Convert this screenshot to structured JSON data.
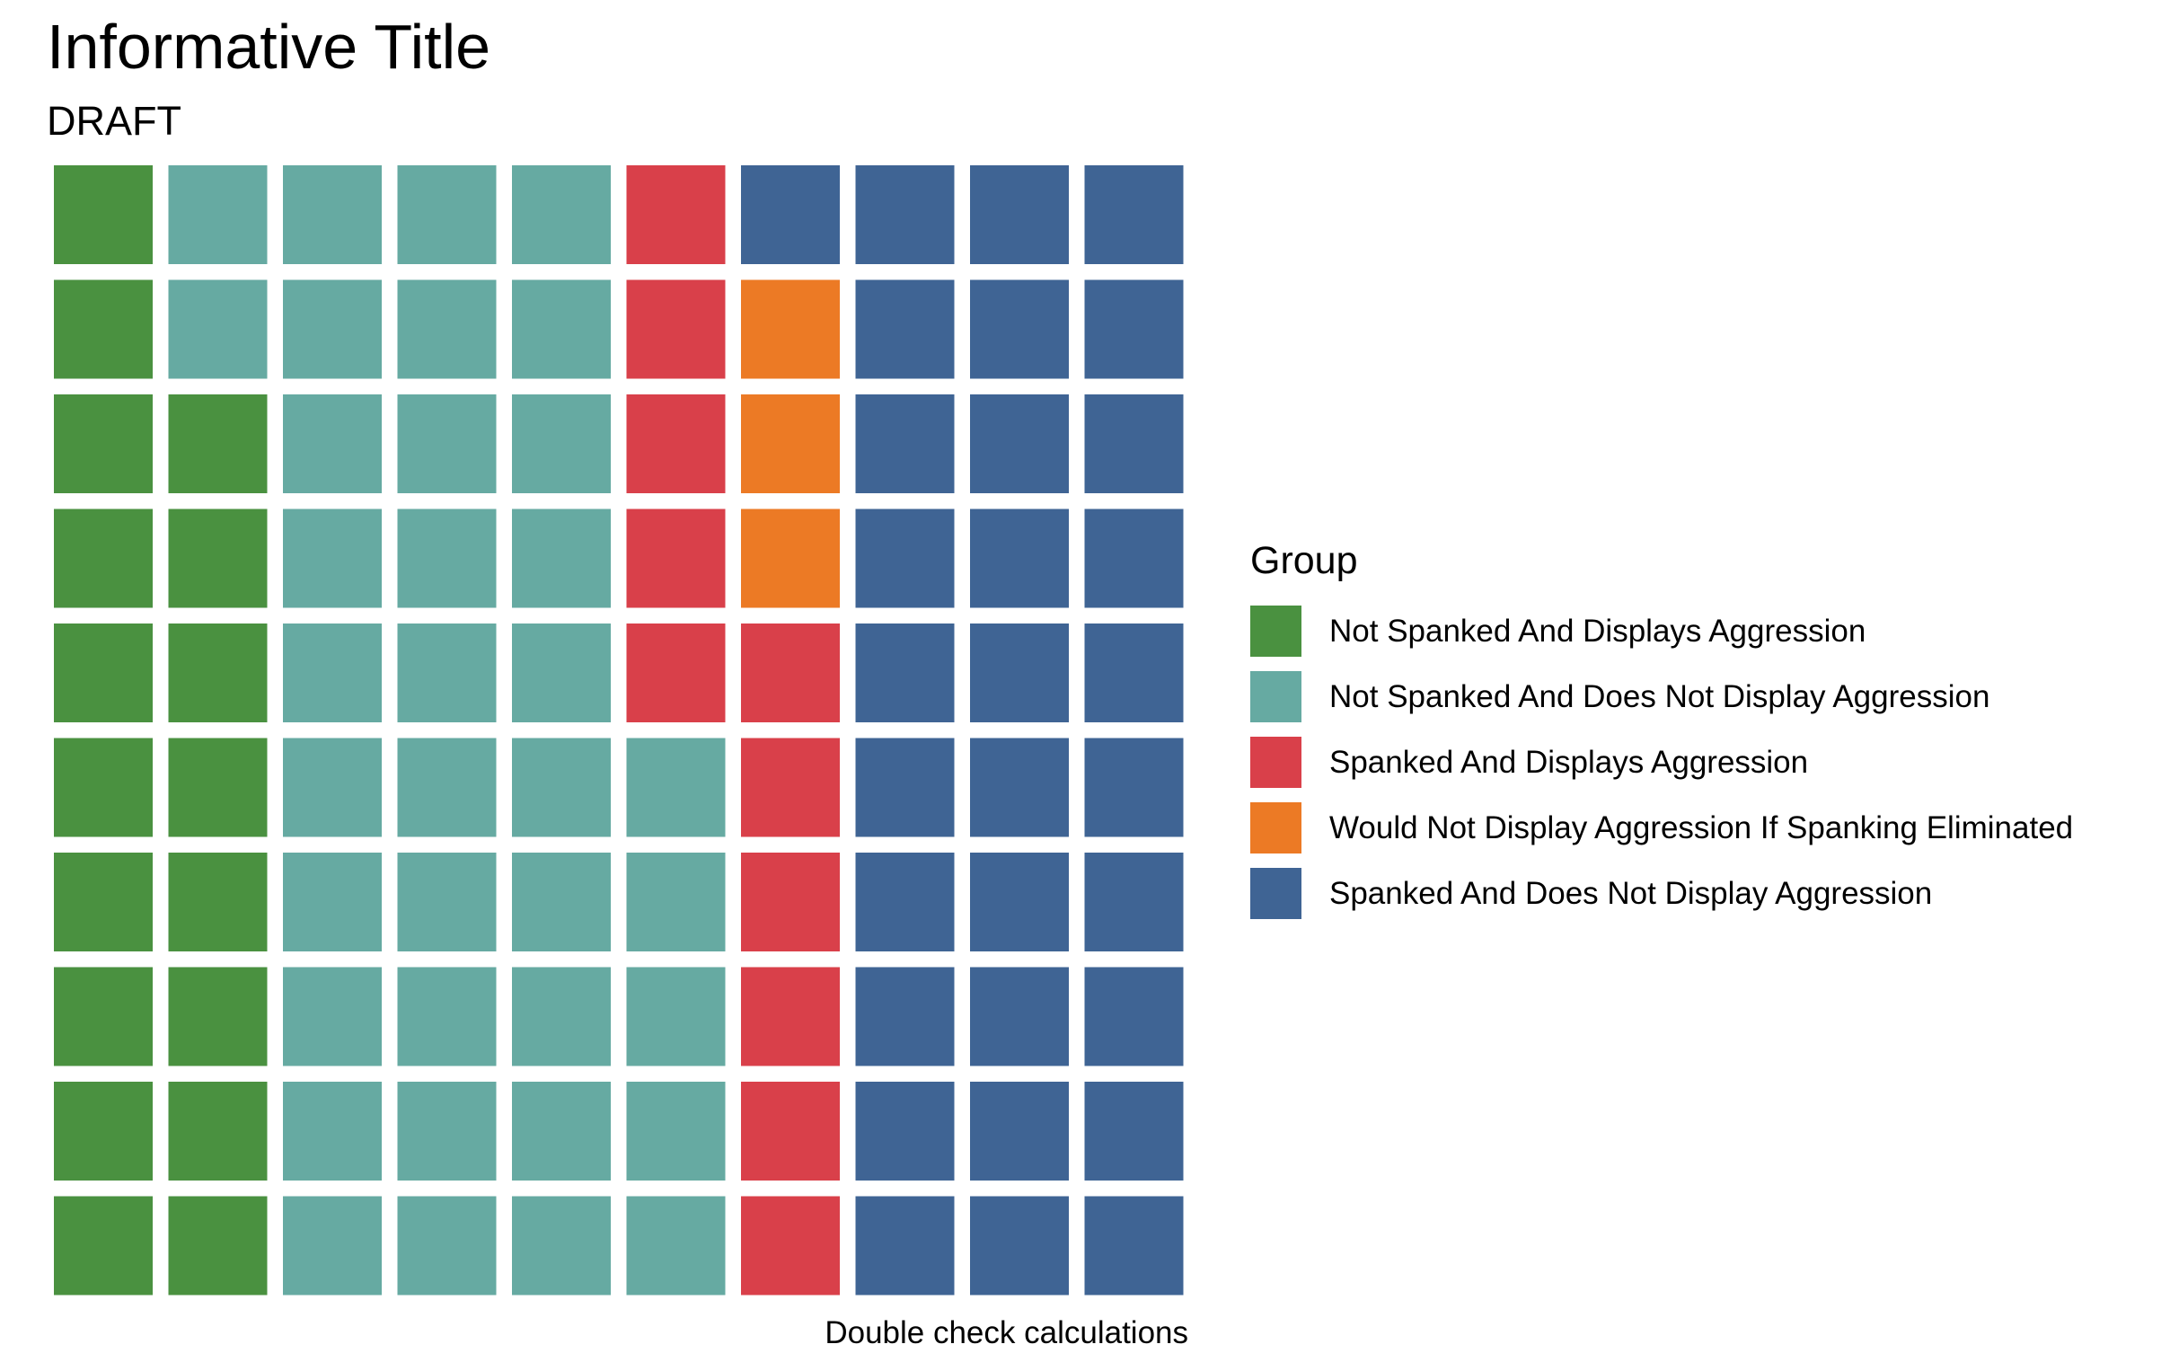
{
  "chart_data": {
    "type": "waffle",
    "title": "Informative Title",
    "subtitle": "DRAFT",
    "caption": "Double check calculations",
    "grid": {
      "rows": 10,
      "cols": 10,
      "fill_order": "column-major, bottom-to-top"
    },
    "legend": {
      "title": "Group",
      "position": "right"
    },
    "series": [
      {
        "name": "Not Spanked And Displays Aggression",
        "value": 18,
        "color": "#4A9140"
      },
      {
        "name": "Not Spanked And Does Not Display Aggression",
        "value": 37,
        "color": "#66AAA2"
      },
      {
        "name": "Spanked And Displays Aggression",
        "value": 11,
        "color": "#D9404A"
      },
      {
        "name": "Would Not Display Aggression If Spanking Eliminated",
        "value": 3,
        "color": "#EC7A25"
      },
      {
        "name": "Spanked And Does Not Display Aggression",
        "value": 31,
        "color": "#3F6494"
      }
    ]
  }
}
